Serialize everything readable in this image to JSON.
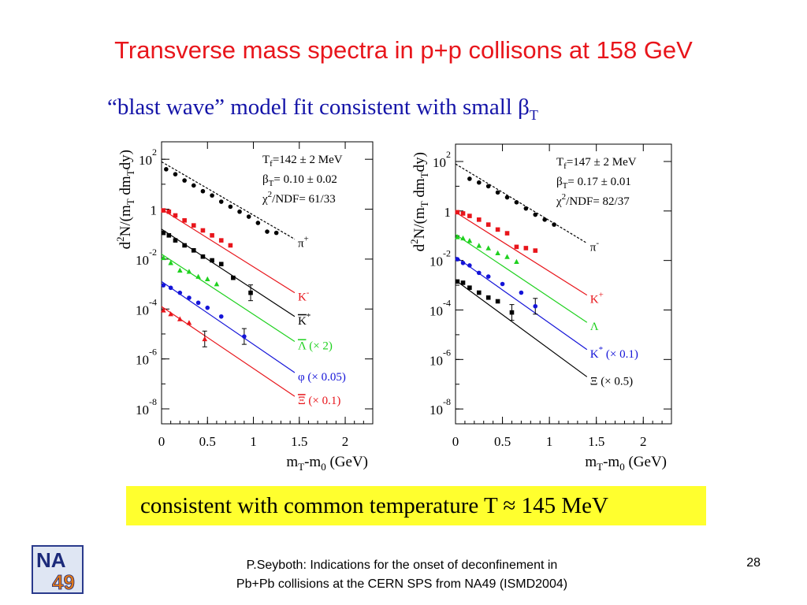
{
  "slide": {
    "title": "Transverse mass spectra in p+p collisons at 158 GeV",
    "subtitle_text": "“blast wave” model fit consistent with small β",
    "subtitle_sub": "T",
    "highlight": "consistent with common temperature  T ≈ 145 MeV",
    "footer_line1": "P.Seyboth: Indications for the onset of deconfinement in",
    "footer_line2": "Pb+Pb collisions at the CERN SPS from NA49   (ISMD2004)",
    "page_number": "28",
    "logo_text_top": "NA",
    "logo_text_bottom": "49"
  },
  "chart_data": [
    {
      "type": "scatter",
      "xlabel": "mT-m0 (GeV)",
      "ylabel": "d2N/(mT dmTdy)",
      "xlim": [
        0,
        2.3
      ],
      "ylog": true,
      "ylim_log10": [
        -8.6,
        2.7
      ],
      "xticks": [
        "0",
        "0.5",
        "1",
        "1.5",
        "2"
      ],
      "xtick_values": [
        0,
        0.5,
        1,
        1.5,
        2
      ],
      "yticks": [
        {
          "value": 2,
          "base": "10",
          "exp": "2"
        },
        {
          "value": 0,
          "base": "1",
          "exp": ""
        },
        {
          "value": -2,
          "base": "10",
          "exp": "-2"
        },
        {
          "value": -4,
          "base": "10",
          "exp": "-4"
        },
        {
          "value": -6,
          "base": "10",
          "exp": "-6"
        },
        {
          "value": -8,
          "base": "10",
          "exp": "-8"
        }
      ],
      "fit_info": {
        "line1": "T",
        "line1_sub": "f",
        "line1_rest": "=142 ± 2 MeV",
        "line2": "β",
        "line2_sub": "T",
        "line2_rest": "= 0.10 ±  0.02",
        "line3": "χ",
        "line3_sup": "2",
        "line3_rest": "/NDF= 61/33"
      },
      "series": [
        {
          "name": "π+",
          "label_main": "π",
          "label_sup": "+",
          "color": "#000000",
          "marker": "circle",
          "dashed": true,
          "x": [
            0.05,
            0.15,
            0.25,
            0.35,
            0.45,
            0.55,
            0.65,
            0.75,
            0.85,
            0.95,
            1.05,
            1.15,
            1.25
          ],
          "y": [
            1.6,
            1.4,
            1.15,
            0.95,
            0.72,
            0.55,
            0.3,
            0.1,
            -0.1,
            -0.3,
            -0.55,
            -0.9,
            -0.95
          ],
          "fit": [
            [
              0.0,
              1.9
            ],
            [
              1.45,
              -1.2
            ]
          ]
        },
        {
          "name": "K-",
          "label_main": "K",
          "label_sup": "-",
          "color": "#e8151b",
          "marker": "square",
          "dashed": false,
          "x": [
            0.02,
            0.08,
            0.15,
            0.25,
            0.35,
            0.45,
            0.55,
            0.65,
            0.75
          ],
          "y": [
            -0.05,
            -0.1,
            -0.25,
            -0.45,
            -0.65,
            -0.85,
            -1.05,
            -1.25,
            -1.45
          ],
          "fit": [
            [
              0.0,
              0.0
            ],
            [
              1.45,
              -3.35
            ]
          ]
        },
        {
          "name": "K*",
          "label_main": "K",
          "label_sup": "*",
          "overline": true,
          "color": "#000000",
          "marker": "square",
          "dashed": false,
          "x": [
            0.02,
            0.08,
            0.15,
            0.25,
            0.35,
            0.45,
            0.55,
            0.65,
            0.78,
            0.97
          ],
          "y": [
            -0.95,
            -1.05,
            -1.25,
            -1.45,
            -1.65,
            -1.9,
            -2.05,
            -2.2,
            -2.75,
            -3.35
          ],
          "yerr_index": 9,
          "fit": [
            [
              0.0,
              -0.8
            ],
            [
              1.45,
              -4.3
            ]
          ]
        },
        {
          "name": "Λ (× 2)",
          "label_main": "Λ",
          "label_rest": " (× 2)",
          "overline": true,
          "color": "#1fd11f",
          "marker": "triangle",
          "dashed": false,
          "x": [
            0.02,
            0.1,
            0.2,
            0.3,
            0.4,
            0.5,
            0.6
          ],
          "y": [
            -1.95,
            -2.15,
            -2.45,
            -2.5,
            -2.7,
            -2.8,
            -3.0
          ],
          "fit": [
            [
              0.0,
              -1.8
            ],
            [
              1.45,
              -5.3
            ]
          ]
        },
        {
          "name": "φ (× 0.05)",
          "label_main": "φ",
          "label_rest": " (× 0.05)",
          "color": "#1414d8",
          "marker": "circle",
          "dashed": false,
          "x": [
            0.02,
            0.1,
            0.2,
            0.3,
            0.4,
            0.5,
            0.65,
            0.9
          ],
          "y": [
            -3.05,
            -3.15,
            -3.35,
            -3.55,
            -3.75,
            -3.95,
            -4.3,
            -5.1
          ],
          "yerr_index": 7,
          "fit": [
            [
              0.0,
              -2.9
            ],
            [
              1.45,
              -6.55
            ]
          ]
        },
        {
          "name": "Ξ (× 0.1)",
          "label_main": "Ξ",
          "label_rest": " (× 0.1)",
          "overline": true,
          "color": "#e8151b",
          "marker": "triangle",
          "dashed": false,
          "x": [
            0.02,
            0.1,
            0.2,
            0.3,
            0.47
          ],
          "y": [
            -4.05,
            -4.2,
            -4.4,
            -4.55,
            -5.2
          ],
          "yerr_index": 4,
          "fit": [
            [
              0.0,
              -3.9
            ],
            [
              1.45,
              -7.5
            ]
          ]
        }
      ]
    },
    {
      "type": "scatter",
      "xlabel": "mT-m0 (GeV)",
      "ylabel": "d2N/(mT dmTdy)",
      "xlim": [
        0,
        2.3
      ],
      "ylog": true,
      "ylim_log10": [
        -8.6,
        2.7
      ],
      "xticks": [
        "0",
        "0.5",
        "1",
        "1.5",
        "2"
      ],
      "xtick_values": [
        0,
        0.5,
        1,
        1.5,
        2
      ],
      "yticks": [
        {
          "value": 2,
          "base": "10",
          "exp": "2"
        },
        {
          "value": 0,
          "base": "1",
          "exp": ""
        },
        {
          "value": -2,
          "base": "10",
          "exp": "-2"
        },
        {
          "value": -4,
          "base": "10",
          "exp": "-4"
        },
        {
          "value": -6,
          "base": "10",
          "exp": "-6"
        },
        {
          "value": -8,
          "base": "10",
          "exp": "-8"
        }
      ],
      "fit_info": {
        "line1": "T",
        "line1_sub": "f",
        "line1_rest": "=147 ± 2 MeV",
        "line2": "β",
        "line2_sub": "T",
        "line2_rest": "= 0.17 ±  0.01",
        "line3": "χ",
        "line3_sup": "2",
        "line3_rest": "/NDF= 82/37"
      },
      "series": [
        {
          "name": "π-",
          "label_main": "π",
          "label_sup": "-",
          "color": "#000000",
          "marker": "circle",
          "dashed": true,
          "x": [
            0.15,
            0.25,
            0.35,
            0.45,
            0.55,
            0.65,
            0.75,
            0.85,
            0.95,
            1.05
          ],
          "y": [
            1.3,
            1.15,
            1.0,
            0.75,
            0.55,
            0.35,
            0.1,
            -0.15,
            -0.35,
            -0.55
          ],
          "fit": [
            [
              0.0,
              1.9
            ],
            [
              1.4,
              -1.3
            ]
          ]
        },
        {
          "name": "K+",
          "label_main": "K",
          "label_sup": "+",
          "color": "#e8151b",
          "marker": "square",
          "dashed": false,
          "x": [
            0.02,
            0.08,
            0.15,
            0.25,
            0.35,
            0.45,
            0.55,
            0.65,
            0.75,
            0.85
          ],
          "y": [
            -0.05,
            -0.1,
            -0.2,
            -0.35,
            -0.55,
            -0.75,
            -0.9,
            -1.45,
            -1.5,
            -1.6
          ],
          "fit": [
            [
              0.0,
              -0.05
            ],
            [
              1.4,
              -3.4
            ]
          ]
        },
        {
          "name": "Λ",
          "label_main": "Λ",
          "color": "#1fd11f",
          "marker": "triangle",
          "dashed": false,
          "x": [
            0.02,
            0.08,
            0.15,
            0.25,
            0.35,
            0.45,
            0.55,
            0.65
          ],
          "y": [
            -1.05,
            -1.1,
            -1.2,
            -1.4,
            -1.5,
            -1.7,
            -1.85,
            -2.05
          ],
          "fit": [
            [
              0.0,
              -0.95
            ],
            [
              1.4,
              -4.5
            ]
          ]
        },
        {
          "name": "K* (× 0.1)",
          "label_main": "K",
          "label_sup": "*",
          "label_rest": " (× 0.1)",
          "color": "#1414d8",
          "marker": "circle",
          "dashed": false,
          "x": [
            0.02,
            0.08,
            0.15,
            0.25,
            0.35,
            0.5,
            0.7,
            0.85
          ],
          "y": [
            -1.95,
            -2.1,
            -2.2,
            -2.5,
            -2.65,
            -2.95,
            -3.3,
            -3.85
          ],
          "yerr_index": 7,
          "fit": [
            [
              0.0,
              -1.85
            ],
            [
              1.4,
              -5.6
            ]
          ]
        },
        {
          "name": "Ξ (× 0.5)",
          "label_main": "Ξ",
          "label_rest": " (× 0.5)",
          "color": "#000000",
          "marker": "square",
          "dashed": false,
          "x": [
            0.02,
            0.08,
            0.15,
            0.25,
            0.35,
            0.45,
            0.6
          ],
          "y": [
            -2.85,
            -2.9,
            -3.1,
            -3.3,
            -3.5,
            -3.65,
            -4.1
          ],
          "yerr_index": 6,
          "fit": [
            [
              0.0,
              -2.8
            ],
            [
              1.4,
              -6.7
            ]
          ]
        }
      ]
    }
  ]
}
